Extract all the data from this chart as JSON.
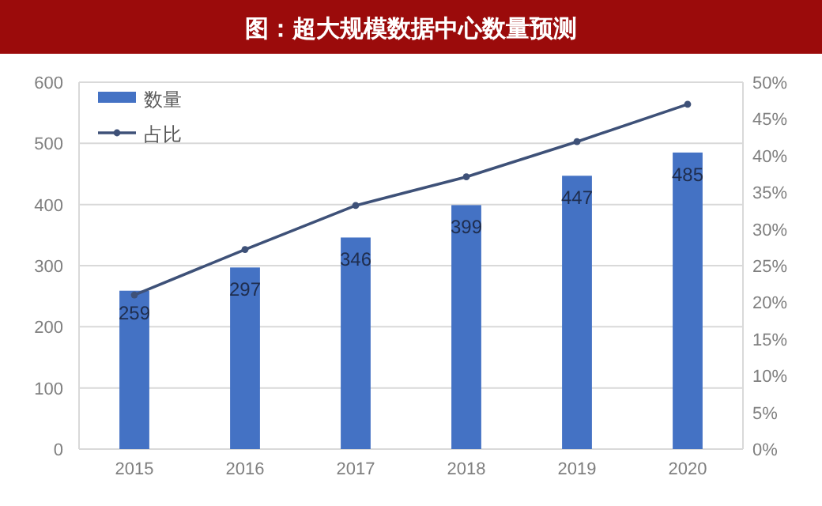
{
  "chart_data": {
    "type": "bar",
    "title": "图：超大规模数据中心数量预测",
    "categories": [
      "2015",
      "2016",
      "2017",
      "2018",
      "2019",
      "2020"
    ],
    "series": [
      {
        "name": "数量",
        "color": "#4472c4",
        "values": [
          259,
          297,
          346,
          399,
          447,
          485
        ],
        "value_labels": [
          "259",
          "297",
          "346",
          "399",
          "447",
          "485"
        ]
      },
      {
        "name": "占比",
        "type": "line",
        "axis": "y2",
        "color": "#3e5178",
        "marker": "circle",
        "values": [
          21.0,
          27.2,
          33.2,
          37.1,
          41.9,
          47.0
        ]
      }
    ],
    "ylim": [
      0,
      600
    ],
    "yticks": [
      0,
      100,
      200,
      300,
      400,
      500,
      600
    ],
    "y2lim": [
      0,
      50
    ],
    "y2ticks": [
      {
        "value": 0,
        "label": "0%"
      },
      {
        "value": 5,
        "label": "5%"
      },
      {
        "value": 10,
        "label": "10%"
      },
      {
        "value": 15,
        "label": "15%"
      },
      {
        "value": 20,
        "label": "20%"
      },
      {
        "value": 25,
        "label": "25%"
      },
      {
        "value": 30,
        "label": "30%"
      },
      {
        "value": 35,
        "label": "35%"
      },
      {
        "value": 40,
        "label": "40%"
      },
      {
        "value": 45,
        "label": "45%"
      },
      {
        "value": 50,
        "label": "50%"
      }
    ],
    "grid": "y",
    "legend": "top left"
  }
}
